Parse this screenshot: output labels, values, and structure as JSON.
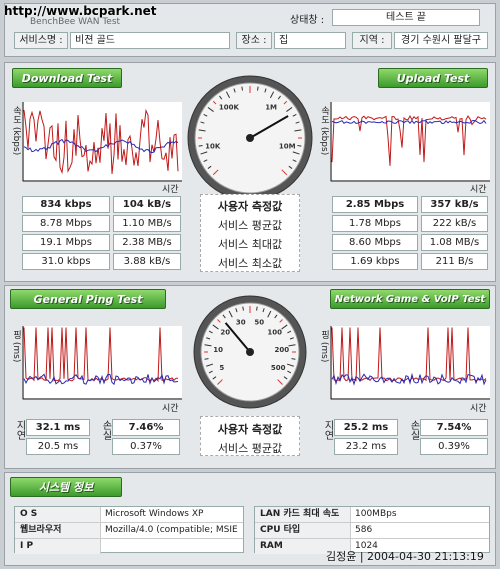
{
  "watermark": "http://www.bcpark.net",
  "header": {
    "app_title": "BenchBee WAN Test",
    "status_label": "상태창 :",
    "status": "테스트 끝",
    "service_label": "서비스명 :",
    "service": "비젼 골드",
    "place_label": "장소 :",
    "place": "집",
    "region_label": "지역 :",
    "region": "경기 수원시 팔달구"
  },
  "speed": {
    "download_tab": "Download Test",
    "upload_tab": "Upload Test",
    "y_label": "속도 (kbps)",
    "x_label": "시간",
    "gauge_labels": [
      "10K",
      "100K",
      "1M",
      "10M"
    ],
    "row_labels": [
      "사용자 측정값",
      "서비스 평균값",
      "서비스 최대값",
      "서비스 최소값"
    ],
    "download": [
      [
        "834 kbps",
        "104 kB/s"
      ],
      [
        "8.78 Mbps",
        "1.10 MB/s"
      ],
      [
        "19.1 Mbps",
        "2.38 MB/s"
      ],
      [
        "31.0 kbps",
        "3.88 kB/s"
      ]
    ],
    "upload": [
      [
        "2.85 Mbps",
        "357 kB/s"
      ],
      [
        "1.78 Mbps",
        "222 kB/s"
      ],
      [
        "8.60 Mbps",
        "1.08 MB/s"
      ],
      [
        "1.69 kbps",
        "211 B/s"
      ]
    ]
  },
  "ping": {
    "ping_tab": "General Ping Test",
    "game_tab": "Network Game & VoIP Test",
    "y_label": "핑 (ms)",
    "x_label": "시간",
    "gauge_labels": [
      "5",
      "10",
      "20",
      "30",
      "50",
      "100",
      "200",
      "500"
    ],
    "delay_label": "지연",
    "loss_label": "손실",
    "row_labels": [
      "사용자 측정값",
      "서비스 평균값"
    ],
    "general": [
      [
        "32.1 ms",
        "7.46%"
      ],
      [
        "20.5 ms",
        "0.37%"
      ]
    ],
    "game": [
      [
        "25.2 ms",
        "7.54%"
      ],
      [
        "23.2 ms",
        "0.39%"
      ]
    ]
  },
  "system": {
    "title": "시스템 정보",
    "left": [
      [
        "O S",
        "Microsoft Windows XP"
      ],
      [
        "웹브라우저",
        "Mozilla/4.0 (compatible; MSIE"
      ],
      [
        "I P"
      ]
    ],
    "right": [
      [
        "LAN 카드 최대 속도",
        "100MBps"
      ],
      [
        "CPU 타입",
        "586"
      ],
      [
        "RAM",
        "1024"
      ]
    ]
  },
  "footer_stamp": "김정윤 | 2004-04-30 21:13:19"
}
